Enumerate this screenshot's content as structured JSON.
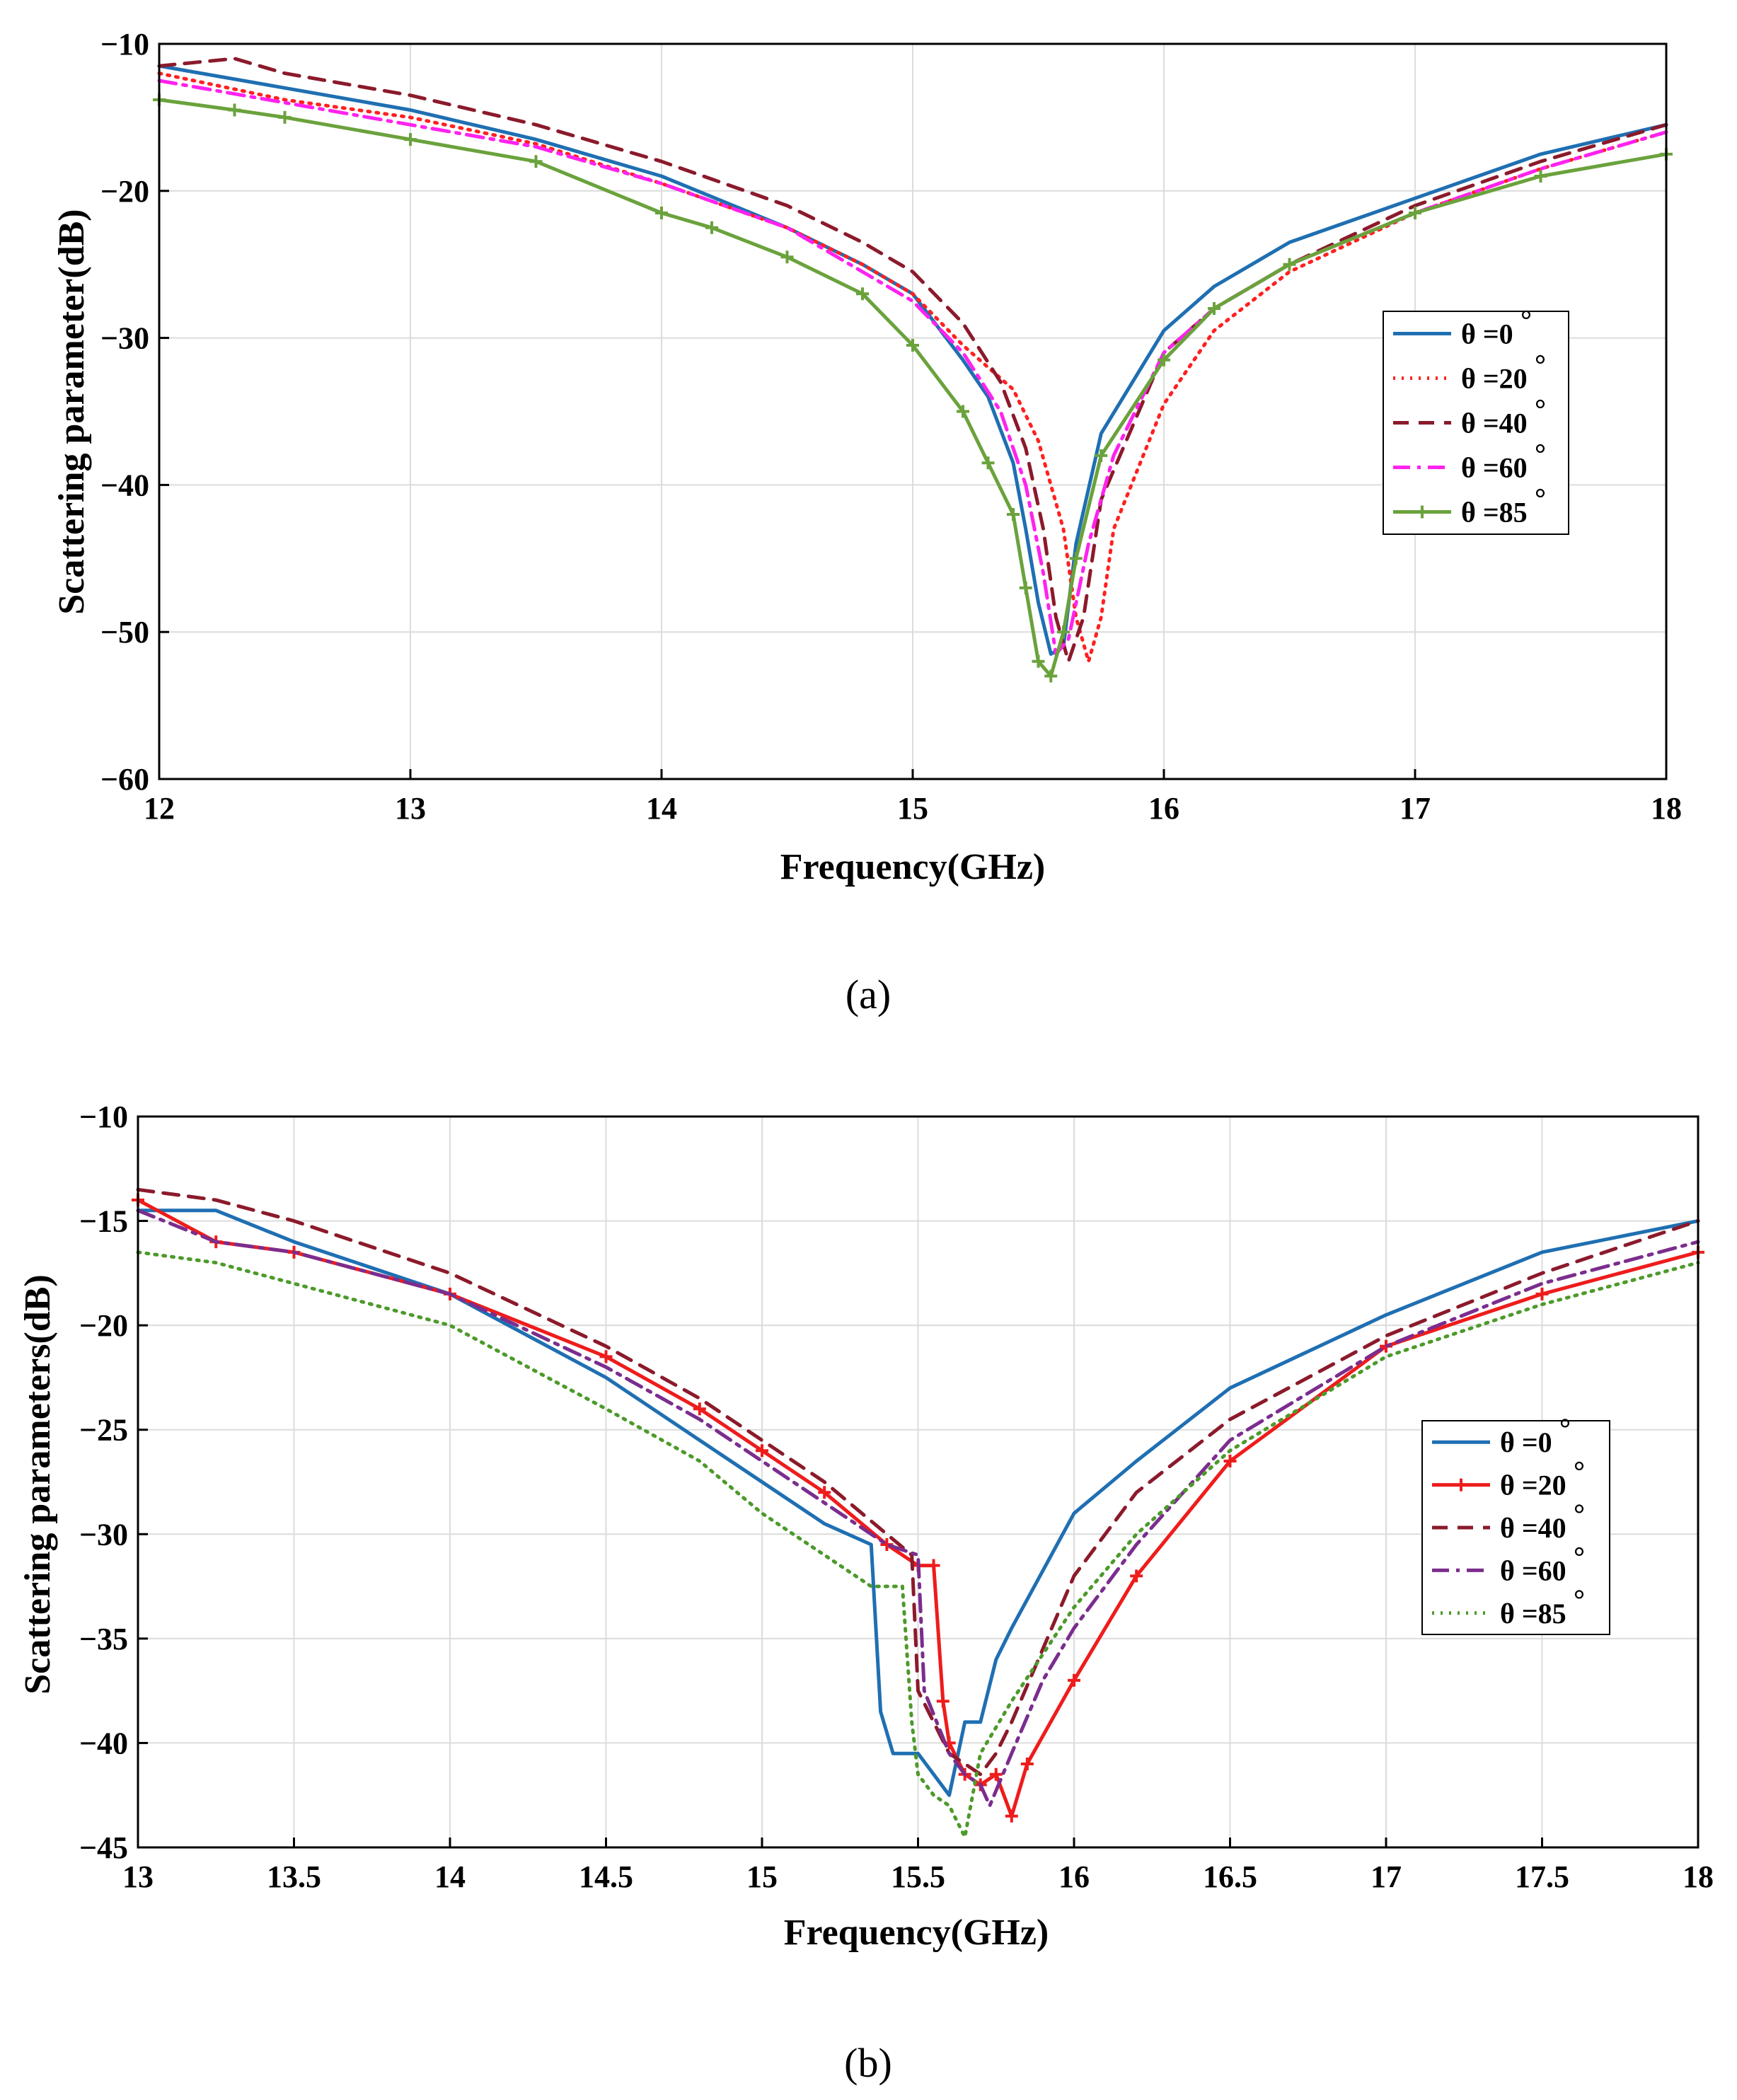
{
  "chart_data": [
    {
      "type": "line",
      "panel": "a",
      "title": "",
      "xlabel": "Frequency(GHz)",
      "ylabel": "Scattering parameter(dB)",
      "xlim": [
        12,
        18
      ],
      "ylim": [
        -60,
        -10
      ],
      "xticks": [
        12,
        13,
        14,
        15,
        16,
        17,
        18
      ],
      "yticks": [
        -10,
        -20,
        -30,
        -40,
        -50,
        -60
      ],
      "xtick_labels": [
        "12",
        "13",
        "14",
        "15",
        "16",
        "17",
        "18"
      ],
      "ytick_labels": [
        "−10",
        "−20",
        "−30",
        "−40",
        "−50",
        "−60"
      ],
      "grid": true,
      "legend_position": "right",
      "series": [
        {
          "name": "θ =0°",
          "label_text": "θ =0",
          "color": "#1f6fb2",
          "dash": "solid",
          "marker": "none",
          "x": [
            12,
            12.5,
            13,
            13.5,
            14,
            14.5,
            14.8,
            15.0,
            15.2,
            15.3,
            15.4,
            15.45,
            15.5,
            15.55,
            15.6,
            15.65,
            15.75,
            16.0,
            16.2,
            16.5,
            17.0,
            17.5,
            18.0
          ],
          "y": [
            -11.5,
            -13.0,
            -14.5,
            -16.5,
            -19.0,
            -22.5,
            -25.0,
            -27.0,
            -31.5,
            -34.0,
            -38.5,
            -43.0,
            -48.0,
            -51.5,
            -51.0,
            -44.0,
            -36.5,
            -29.5,
            -26.5,
            -23.5,
            -20.5,
            -17.5,
            -15.5
          ]
        },
        {
          "name": "θ =20°",
          "label_text": "θ =20",
          "color": "#ff2020",
          "dash": "dotted",
          "marker": "none",
          "x": [
            12,
            12.5,
            13,
            13.5,
            14,
            14.5,
            14.8,
            15.0,
            15.2,
            15.4,
            15.5,
            15.6,
            15.65,
            15.7,
            15.75,
            15.8,
            16.0,
            16.2,
            16.5,
            17.0,
            17.5,
            18.0
          ],
          "y": [
            -12.0,
            -13.8,
            -15.0,
            -16.8,
            -19.5,
            -22.5,
            -25.0,
            -27.0,
            -30.5,
            -33.5,
            -37.0,
            -43.0,
            -49.0,
            -52.0,
            -49.0,
            -43.0,
            -34.5,
            -29.5,
            -25.5,
            -21.5,
            -18.5,
            -16.0
          ]
        },
        {
          "name": "θ =40°",
          "label_text": "θ =40",
          "color": "#8b1a2b",
          "dash": "dashed",
          "marker": "none",
          "x": [
            12,
            12.3,
            12.5,
            13,
            13.5,
            14,
            14.5,
            14.8,
            15.0,
            15.2,
            15.35,
            15.45,
            15.52,
            15.57,
            15.62,
            15.68,
            15.75,
            16.0,
            16.2,
            16.5,
            17.0,
            17.5,
            18.0
          ],
          "y": [
            -11.5,
            -11.0,
            -12.0,
            -13.5,
            -15.5,
            -18.0,
            -21.0,
            -23.5,
            -25.5,
            -29.0,
            -33.0,
            -37.5,
            -43.0,
            -49.0,
            -52.0,
            -49.0,
            -41.0,
            -31.0,
            -28.0,
            -25.0,
            -21.0,
            -18.0,
            -15.5
          ]
        },
        {
          "name": "θ =60°",
          "label_text": "θ =60",
          "color": "#ff22ee",
          "dash": "dashdot",
          "marker": "none",
          "x": [
            12,
            12.5,
            13,
            13.5,
            14,
            14.5,
            14.8,
            15.0,
            15.2,
            15.35,
            15.45,
            15.52,
            15.57,
            15.62,
            15.7,
            15.8,
            16.0,
            16.2,
            16.5,
            17.0,
            17.5,
            18.0
          ],
          "y": [
            -12.5,
            -14.0,
            -15.5,
            -17.0,
            -19.5,
            -22.5,
            -25.5,
            -27.5,
            -31.0,
            -35.0,
            -40.0,
            -46.0,
            -51.5,
            -50.5,
            -44.0,
            -38.0,
            -31.0,
            -28.0,
            -25.0,
            -21.5,
            -18.5,
            -16.0
          ]
        },
        {
          "name": "θ =85°",
          "label_text": "θ =85",
          "color": "#6aa23c",
          "dash": "solid",
          "marker": "plus",
          "x": [
            12,
            12.3,
            12.5,
            13,
            13.5,
            14,
            14.2,
            14.5,
            14.8,
            15.0,
            15.2,
            15.3,
            15.4,
            15.45,
            15.5,
            15.55,
            15.6,
            15.65,
            15.75,
            16.0,
            16.2,
            16.5,
            17.0,
            17.5,
            18.0
          ],
          "y": [
            -13.8,
            -14.5,
            -15.0,
            -16.5,
            -18.0,
            -21.5,
            -22.5,
            -24.5,
            -27.0,
            -30.5,
            -35.0,
            -38.5,
            -42.0,
            -47.0,
            -52.0,
            -53.0,
            -50.0,
            -45.0,
            -38.0,
            -31.5,
            -28.0,
            -25.0,
            -21.5,
            -19.0,
            -17.5
          ]
        }
      ]
    },
    {
      "type": "line",
      "panel": "b",
      "title": "",
      "xlabel": "Frequency(GHz)",
      "ylabel": "Scattering parameters(dB)",
      "xlim": [
        13,
        18
      ],
      "ylim": [
        -45,
        -10
      ],
      "xticks": [
        13,
        13.5,
        14,
        14.5,
        15,
        15.5,
        16,
        16.5,
        17,
        17.5,
        18
      ],
      "yticks": [
        -10,
        -15,
        -20,
        -25,
        -30,
        -35,
        -40,
        -45
      ],
      "xtick_labels": [
        "13",
        "13.5",
        "14",
        "14.5",
        "15",
        "15.5",
        "16",
        "16.5",
        "17",
        "17.5",
        "18"
      ],
      "ytick_labels": [
        "−10",
        "−15",
        "−20",
        "−25",
        "−30",
        "−35",
        "−40",
        "−45"
      ],
      "grid": true,
      "legend_position": "right",
      "series": [
        {
          "name": "θ =0°",
          "label_text": "θ =0",
          "color": "#1f6fb2",
          "dash": "solid",
          "marker": "none",
          "x": [
            13,
            13.25,
            13.5,
            14,
            14.5,
            14.8,
            15.0,
            15.2,
            15.35,
            15.38,
            15.42,
            15.5,
            15.55,
            15.6,
            15.65,
            15.7,
            15.75,
            15.8,
            16.0,
            16.2,
            16.5,
            17.0,
            17.5,
            18.0
          ],
          "y": [
            -14.5,
            -14.5,
            -16.0,
            -18.5,
            -22.5,
            -25.5,
            -27.5,
            -29.5,
            -30.5,
            -38.5,
            -40.5,
            -40.5,
            -41.5,
            -42.5,
            -39.0,
            -39.0,
            -36.0,
            -34.5,
            -29.0,
            -26.5,
            -23.0,
            -19.5,
            -16.5,
            -15.0
          ]
        },
        {
          "name": "θ =20°",
          "label_text": "θ =20",
          "color": "#ee1c1c",
          "dash": "solid",
          "marker": "plus",
          "x": [
            13,
            13.25,
            13.5,
            14,
            14.5,
            14.8,
            15.0,
            15.2,
            15.4,
            15.5,
            15.55,
            15.58,
            15.6,
            15.65,
            15.7,
            15.75,
            15.8,
            15.85,
            16.0,
            16.2,
            16.5,
            17.0,
            17.5,
            18.0
          ],
          "y": [
            -14.0,
            -16.0,
            -16.5,
            -18.5,
            -21.5,
            -24.0,
            -26.0,
            -28.0,
            -30.5,
            -31.5,
            -31.5,
            -38.0,
            -40.0,
            -41.5,
            -42.0,
            -41.5,
            -43.5,
            -41.0,
            -37.0,
            -32.0,
            -26.5,
            -21.0,
            -18.5,
            -16.5
          ]
        },
        {
          "name": "θ =40°",
          "label_text": "θ =40",
          "color": "#8b1a2b",
          "dash": "dashed",
          "marker": "none",
          "x": [
            13,
            13.25,
            13.5,
            14,
            14.5,
            14.8,
            15.0,
            15.2,
            15.4,
            15.48,
            15.5,
            15.55,
            15.6,
            15.65,
            15.7,
            15.75,
            15.8,
            16.0,
            16.2,
            16.5,
            17.0,
            17.5,
            18.0
          ],
          "y": [
            -13.5,
            -14.0,
            -15.0,
            -17.5,
            -21.0,
            -23.5,
            -25.5,
            -27.5,
            -30.0,
            -31.0,
            -37.5,
            -39.0,
            -40.5,
            -41.0,
            -41.5,
            -40.5,
            -39.0,
            -32.0,
            -28.0,
            -24.5,
            -20.5,
            -17.5,
            -15.0
          ]
        },
        {
          "name": "θ =60°",
          "label_text": "θ =60",
          "color": "#7b2d8e",
          "dash": "dashdot",
          "marker": "none",
          "x": [
            13,
            13.25,
            13.5,
            14,
            14.5,
            14.8,
            15.0,
            15.2,
            15.4,
            15.5,
            15.52,
            15.6,
            15.65,
            15.7,
            15.73,
            15.8,
            15.9,
            16.0,
            16.2,
            16.5,
            17.0,
            17.5,
            18.0
          ],
          "y": [
            -14.5,
            -16.0,
            -16.5,
            -18.5,
            -22.0,
            -24.5,
            -26.5,
            -28.5,
            -30.5,
            -31.0,
            -37.5,
            -40.5,
            -41.5,
            -42.0,
            -43.0,
            -40.5,
            -37.0,
            -34.5,
            -30.5,
            -25.5,
            -21.0,
            -18.0,
            -16.0
          ]
        },
        {
          "name": "θ =85°",
          "label_text": "θ =85",
          "color": "#4c9a2a",
          "dash": "dotted",
          "marker": "none",
          "x": [
            13,
            13.25,
            13.5,
            14,
            14.5,
            14.8,
            15.0,
            15.2,
            15.35,
            15.45,
            15.48,
            15.5,
            15.55,
            15.6,
            15.65,
            15.7,
            15.8,
            16.0,
            16.2,
            16.5,
            17.0,
            17.5,
            18.0
          ],
          "y": [
            -16.5,
            -17.0,
            -18.0,
            -20.0,
            -24.0,
            -26.5,
            -29.0,
            -31.0,
            -32.5,
            -32.5,
            -39.0,
            -41.5,
            -42.5,
            -43.0,
            -44.5,
            -40.5,
            -38.0,
            -33.5,
            -30.0,
            -26.0,
            -21.5,
            -19.0,
            -17.0
          ]
        }
      ]
    }
  ],
  "panel_labels": [
    "(a)",
    "(b)"
  ]
}
